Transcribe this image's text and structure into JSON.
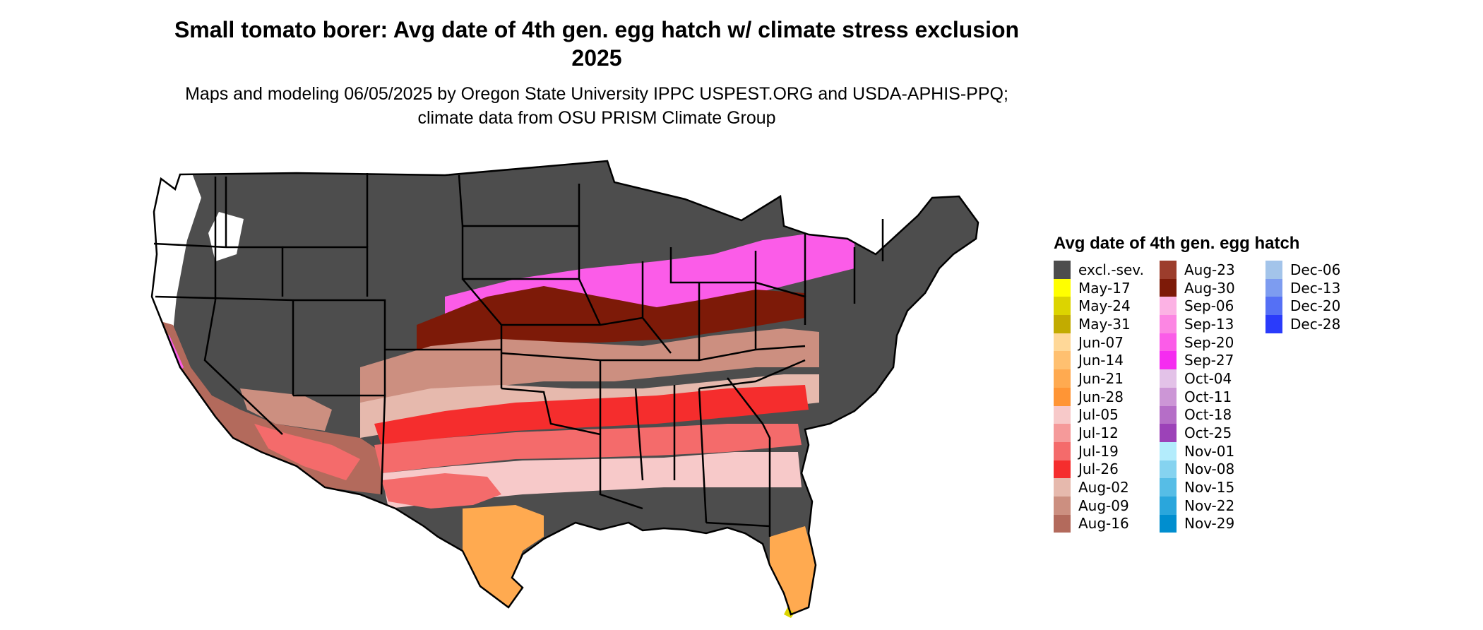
{
  "title": "Small tomato borer: Avg date of 4th gen. egg hatch w/ climate stress exclusion 2025",
  "subtitle": "Maps and modeling 06/05/2025 by Oregon State University IPPC USPEST.ORG and USDA-APHIS-PPQ; climate data from OSU PRISM Climate Group",
  "legend": {
    "title": "Avg date of 4th gen. egg hatch",
    "columns": [
      [
        {
          "label": "excl.-sev.",
          "color": "#4d4d4d"
        },
        {
          "label": "May-17",
          "color": "#ffff00"
        },
        {
          "label": "May-24",
          "color": "#dcd400"
        },
        {
          "label": "May-31",
          "color": "#c2ab00"
        },
        {
          "label": "Jun-07",
          "color": "#ffd898"
        },
        {
          "label": "Jun-14",
          "color": "#ffc070"
        },
        {
          "label": "Jun-21",
          "color": "#ffaa50"
        },
        {
          "label": "Jun-28",
          "color": "#ff9535"
        },
        {
          "label": "Jul-05",
          "color": "#f7c9c9"
        },
        {
          "label": "Jul-12",
          "color": "#f59a9a"
        },
        {
          "label": "Jul-19",
          "color": "#f46b6b"
        },
        {
          "label": "Jul-26",
          "color": "#f52d2d"
        },
        {
          "label": "Aug-02",
          "color": "#e6b9ad"
        },
        {
          "label": "Aug-09",
          "color": "#cc8f80"
        },
        {
          "label": "Aug-16",
          "color": "#b36a5c"
        }
      ],
      [
        {
          "label": "Aug-23",
          "color": "#9c3d2c"
        },
        {
          "label": "Aug-30",
          "color": "#7d1a08"
        },
        {
          "label": "Sep-06",
          "color": "#fcb2e4"
        },
        {
          "label": "Sep-13",
          "color": "#fc86e3"
        },
        {
          "label": "Sep-20",
          "color": "#fb5ce8"
        },
        {
          "label": "Sep-27",
          "color": "#f52cf0"
        },
        {
          "label": "Oct-04",
          "color": "#e3c2e8"
        },
        {
          "label": "Oct-11",
          "color": "#cc96d6"
        },
        {
          "label": "Oct-18",
          "color": "#b56ec7"
        },
        {
          "label": "Oct-25",
          "color": "#9c42b8"
        },
        {
          "label": "Nov-01",
          "color": "#b3ecfc"
        },
        {
          "label": "Nov-08",
          "color": "#85d3f0"
        },
        {
          "label": "Nov-15",
          "color": "#56bde6"
        },
        {
          "label": "Nov-22",
          "color": "#2aa6dc"
        },
        {
          "label": "Nov-29",
          "color": "#008ecf"
        }
      ],
      [
        {
          "label": "Dec-06",
          "color": "#a3c4ea"
        },
        {
          "label": "Dec-13",
          "color": "#7d9cf0"
        },
        {
          "label": "Dec-20",
          "color": "#5570f5"
        },
        {
          "label": "Dec-28",
          "color": "#2a3bfb"
        }
      ]
    ]
  },
  "map": {
    "excluded_color": "#4d4d4d",
    "no_data_color": "#ffffff",
    "border_color": "#000000"
  }
}
